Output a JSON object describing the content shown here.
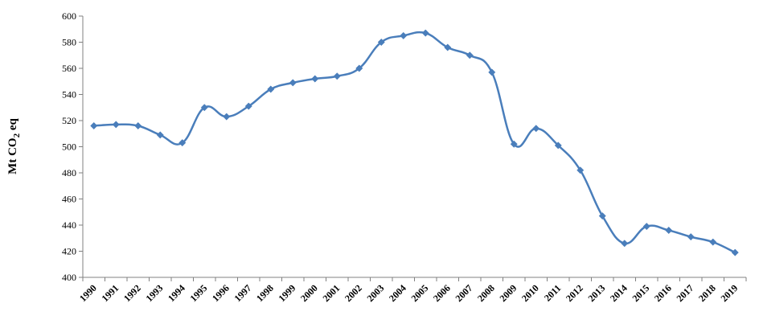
{
  "chart_data": {
    "type": "line",
    "title": "",
    "xlabel": "",
    "ylabel": {
      "main": "Mt CO",
      "subscript": "2",
      "suffix": " eq"
    },
    "ylim": [
      400,
      600
    ],
    "y_ticks": [
      "400",
      "420",
      "440",
      "460",
      "480",
      "500",
      "520",
      "540",
      "560",
      "580",
      "600"
    ],
    "grid": false,
    "legend": "none",
    "categories": [
      "1990",
      "1991",
      "1992",
      "1993",
      "1994",
      "1995",
      "1996",
      "1997",
      "1998",
      "1999",
      "2000",
      "2001",
      "2002",
      "2003",
      "2004",
      "2005",
      "2006",
      "2007",
      "2008",
      "2009",
      "2010",
      "2011",
      "2012",
      "2013",
      "2014",
      "2015",
      "2016",
      "2017",
      "2018",
      "2019"
    ],
    "series": [
      {
        "color": "#4a7ebb",
        "marker": "diamond",
        "smooth": true,
        "values": [
          516,
          517,
          516,
          509,
          503,
          530,
          523,
          531,
          544,
          549,
          552,
          554,
          560,
          580,
          585,
          587,
          576,
          570,
          557,
          502,
          514,
          501,
          482,
          447,
          426,
          439,
          436,
          431,
          427,
          419
        ]
      }
    ]
  }
}
